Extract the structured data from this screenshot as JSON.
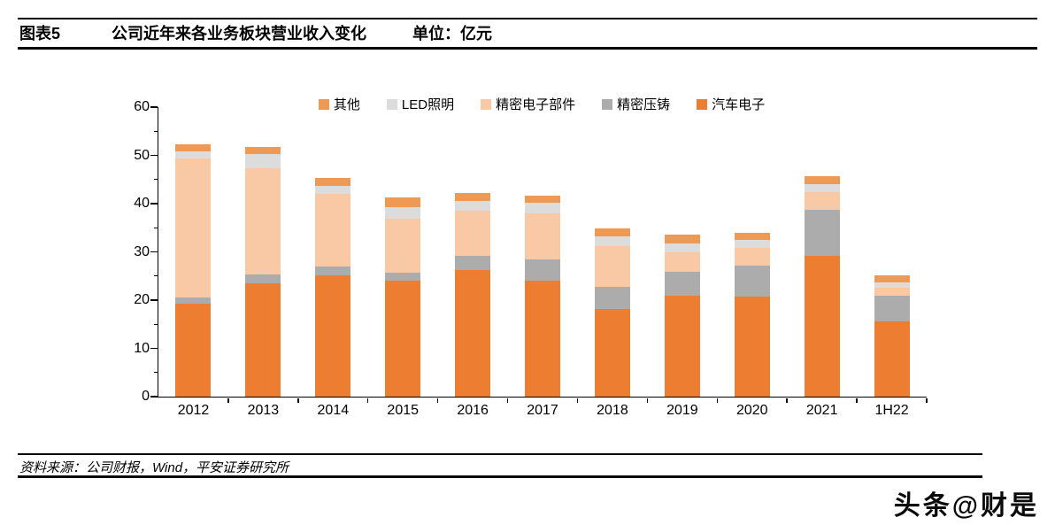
{
  "header": {
    "tag": "图表5",
    "title": "公司近年来各业务板块营业收入变化",
    "unit": "单位：亿元"
  },
  "footer": {
    "source": "资料来源：公司财报，Wind，平安证券研究所"
  },
  "watermark": "头条@财是",
  "chart_data": {
    "type": "bar",
    "stacked": true,
    "title": "公司近年来各业务板块营业收入变化",
    "unit": "亿元",
    "categories": [
      "2012",
      "2013",
      "2014",
      "2015",
      "2016",
      "2017",
      "2018",
      "2019",
      "2020",
      "2021",
      "1H22"
    ],
    "series": [
      {
        "name": "汽车电子",
        "color": "#ED7D31",
        "values": [
          19.3,
          23.5,
          25.1,
          24.0,
          26.3,
          24.0,
          18.2,
          20.9,
          20.7,
          29.1,
          15.6
        ]
      },
      {
        "name": "精密压铸",
        "color": "#ACACAC",
        "values": [
          1.2,
          1.9,
          1.9,
          1.7,
          2.9,
          4.4,
          4.6,
          4.9,
          6.5,
          9.7,
          5.3
        ]
      },
      {
        "name": "精密电子部件",
        "color": "#F8C9A4",
        "values": [
          28.8,
          21.9,
          15.0,
          11.2,
          9.3,
          9.6,
          8.4,
          4.2,
          3.6,
          3.5,
          1.7
        ]
      },
      {
        "name": "LED照明",
        "color": "#DCDCDC",
        "values": [
          1.5,
          3.0,
          1.7,
          2.3,
          2.0,
          2.2,
          2.0,
          1.8,
          1.7,
          1.7,
          1.1
        ]
      },
      {
        "name": "其他",
        "color": "#EE9A55",
        "values": [
          1.5,
          1.4,
          1.7,
          2.0,
          1.7,
          1.5,
          1.7,
          1.7,
          1.5,
          1.6,
          1.4
        ]
      }
    ],
    "totals": [
      52.3,
      51.7,
      45.4,
      41.2,
      42.2,
      41.7,
      34.9,
      33.5,
      34.0,
      45.6,
      25.1
    ],
    "legend_order": [
      "其他",
      "LED照明",
      "精密电子部件",
      "精密压铸",
      "汽车电子"
    ],
    "legend_position": "top-center",
    "ylim": [
      0,
      60
    ],
    "yticks": [
      0,
      10,
      20,
      30,
      40,
      50,
      60
    ],
    "minor_ytick_step": 5,
    "grid": false,
    "axis_color": "#000000"
  }
}
